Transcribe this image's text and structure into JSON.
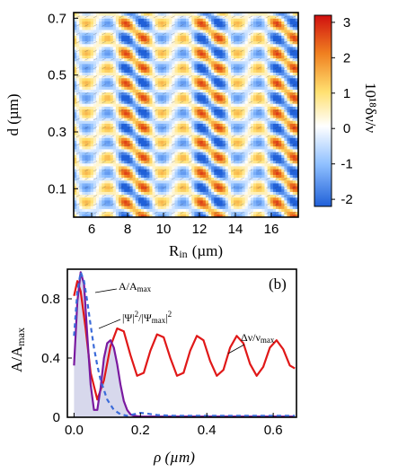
{
  "chart_data": [
    {
      "type": "heatmap",
      "xlabel": "R",
      "xlabel_sub": "in",
      "xlabel_unit": "(µm)",
      "ylabel": "d (µm)",
      "xlim": [
        5,
        17.5
      ],
      "ylim": [
        0,
        0.72
      ],
      "xticks": [
        "6",
        "8",
        "10",
        "12",
        "14",
        "16"
      ],
      "yticks": [
        "0.1",
        "0.3",
        "0.5",
        "0.7"
      ],
      "colorbar": {
        "label": "10¹⁸δν/ν",
        "range": [
          -2.2,
          3.2
        ],
        "ticks": [
          "3",
          "2",
          "1",
          "0",
          "-1",
          "-2"
        ],
        "colors": [
          "#2060d8",
          "#8fc0ff",
          "#ffffff",
          "#ffe070",
          "#f08020",
          "#d01010"
        ]
      },
      "pattern": {
        "description_free_values": true,
        "period_x": 2.1,
        "period_y": 0.105,
        "amplitude": 3.0
      }
    },
    {
      "type": "line",
      "panel_label": "(b)",
      "xlabel": "ρ  (µm)",
      "ylabel": "A/A",
      "ylabel_sub": "max",
      "xlim": [
        -0.02,
        0.67
      ],
      "ylim": [
        0,
        1.0
      ],
      "xticks": [
        "0.0",
        "0.2",
        "0.4",
        "0.6"
      ],
      "yticks": [
        "0",
        "0.4",
        "0.8"
      ],
      "annotations": {
        "amp": "A/A",
        "amp_sub": "max",
        "psi": "|Ψ|",
        "psi_sup": "2",
        "psi_mid": "/|Ψ",
        "psi_sub": "max",
        "psi_end": "|",
        "psi_sup2": "2",
        "dnu": "Δν/ν",
        "dnu_sub": "max"
      },
      "series": [
        {
          "color": "#e01818",
          "x": [
            0.0,
            0.01,
            0.02,
            0.035,
            0.05,
            0.07,
            0.09,
            0.11,
            0.13,
            0.15,
            0.17,
            0.19,
            0.21,
            0.23,
            0.25,
            0.27,
            0.29,
            0.31,
            0.33,
            0.35,
            0.37,
            0.39,
            0.41,
            0.43,
            0.45,
            0.47,
            0.49,
            0.51,
            0.53,
            0.55,
            0.57,
            0.59,
            0.61,
            0.63,
            0.65,
            0.665
          ],
          "y": [
            0.82,
            0.92,
            0.85,
            0.6,
            0.3,
            0.12,
            0.25,
            0.48,
            0.6,
            0.58,
            0.42,
            0.28,
            0.3,
            0.45,
            0.56,
            0.54,
            0.4,
            0.28,
            0.3,
            0.45,
            0.55,
            0.52,
            0.38,
            0.28,
            0.32,
            0.47,
            0.55,
            0.5,
            0.36,
            0.28,
            0.34,
            0.47,
            0.52,
            0.46,
            0.35,
            0.33
          ]
        },
        {
          "color": "#7a1aa0",
          "x": [
            0.0,
            0.01,
            0.02,
            0.03,
            0.04,
            0.05,
            0.06,
            0.07,
            0.08,
            0.09,
            0.1,
            0.11,
            0.12,
            0.13,
            0.14,
            0.15,
            0.16,
            0.17,
            0.18,
            0.2,
            0.25,
            0.3,
            0.4,
            0.5,
            0.6,
            0.665
          ],
          "y": [
            0.35,
            0.78,
            0.98,
            0.9,
            0.55,
            0.22,
            0.05,
            0.05,
            0.2,
            0.4,
            0.5,
            0.52,
            0.47,
            0.36,
            0.22,
            0.11,
            0.05,
            0.02,
            0.01,
            0.005,
            0.005,
            0.005,
            0.005,
            0.005,
            0.005,
            0.005
          ]
        },
        {
          "color": "#3b6bd9",
          "dash": true,
          "x": [
            0.0,
            0.01,
            0.02,
            0.03,
            0.04,
            0.05,
            0.06,
            0.07,
            0.08,
            0.1,
            0.12,
            0.14,
            0.16,
            0.18,
            0.2,
            0.22,
            0.25,
            0.3,
            0.4,
            0.5,
            0.6,
            0.665
          ],
          "y": [
            0.55,
            0.85,
            0.98,
            0.92,
            0.78,
            0.62,
            0.47,
            0.35,
            0.25,
            0.12,
            0.05,
            0.02,
            0.01,
            0.02,
            0.03,
            0.025,
            0.015,
            0.01,
            0.01,
            0.01,
            0.01,
            0.01
          ]
        }
      ]
    }
  ]
}
